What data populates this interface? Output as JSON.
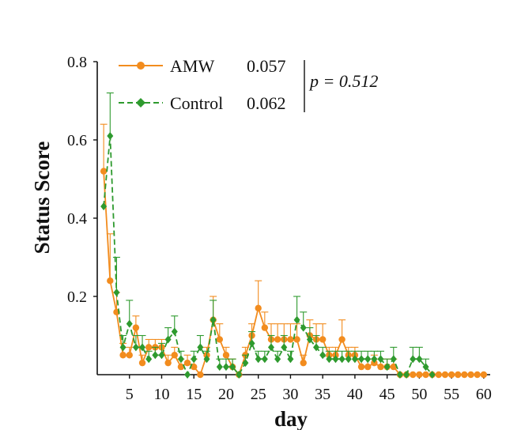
{
  "chart_data": {
    "type": "line",
    "xlabel": "day",
    "ylabel": "Status Score",
    "xlim": [
      0,
      61
    ],
    "ylim": [
      0,
      0.8
    ],
    "x_ticks": [
      5,
      10,
      15,
      20,
      25,
      30,
      35,
      40,
      45,
      50,
      55,
      60
    ],
    "y_ticks": [
      0.2,
      0.4,
      0.6,
      0.8
    ],
    "y_tick_labels": [
      "0.2",
      "0.4",
      "0.6",
      "0.8"
    ],
    "grid": false,
    "legend_position": "top-center",
    "series": [
      {
        "name": "AMW",
        "stat": "0.057",
        "color": "#f28c1e",
        "marker": "circle",
        "line_style": "solid",
        "x": [
          1,
          2,
          3,
          4,
          5,
          6,
          7,
          8,
          9,
          10,
          11,
          12,
          13,
          14,
          15,
          16,
          17,
          18,
          19,
          20,
          21,
          22,
          23,
          24,
          25,
          26,
          27,
          28,
          29,
          30,
          31,
          32,
          33,
          34,
          35,
          36,
          37,
          38,
          39,
          40,
          41,
          42,
          43,
          44,
          45,
          46,
          47,
          48,
          49,
          50,
          51,
          52,
          53,
          54,
          55,
          56,
          57,
          58,
          59,
          60
        ],
        "values": [
          0.52,
          0.24,
          0.16,
          0.05,
          0.05,
          0.12,
          0.03,
          0.07,
          0.07,
          0.07,
          0.03,
          0.05,
          0.02,
          0.03,
          0.02,
          0.0,
          0.05,
          0.14,
          0.09,
          0.05,
          0.02,
          0.0,
          0.05,
          0.1,
          0.17,
          0.12,
          0.09,
          0.09,
          0.09,
          0.09,
          0.09,
          0.03,
          0.1,
          0.09,
          0.09,
          0.05,
          0.05,
          0.09,
          0.05,
          0.05,
          0.02,
          0.02,
          0.03,
          0.02,
          0.02,
          0.02,
          0.0,
          0.0,
          0.0,
          0.0,
          0.0,
          0.0,
          0.0,
          0.0,
          0.0,
          0.0,
          0.0,
          0.0,
          0.0,
          0.0
        ],
        "errors": [
          0.12,
          0.12,
          0.05,
          0.03,
          0.02,
          0.03,
          0.02,
          0.02,
          0.02,
          0.02,
          0.02,
          0.02,
          0.02,
          0.02,
          0.02,
          0.0,
          0.02,
          0.06,
          0.04,
          0.02,
          0.02,
          0.0,
          0.02,
          0.03,
          0.07,
          0.04,
          0.04,
          0.04,
          0.04,
          0.04,
          0.04,
          0.02,
          0.04,
          0.04,
          0.04,
          0.02,
          0.02,
          0.05,
          0.02,
          0.02,
          0.02,
          0.02,
          0.02,
          0.02,
          0.02,
          0.02,
          0.0,
          0.0,
          0.0,
          0.0,
          0.0,
          0.0,
          0.0,
          0.0,
          0.0,
          0.0,
          0.0,
          0.0,
          0.0,
          0.0
        ]
      },
      {
        "name": "Control",
        "stat": "0.062",
        "color": "#2e9a2e",
        "marker": "diamond",
        "line_style": "dashed",
        "x": [
          1,
          2,
          3,
          4,
          5,
          6,
          7,
          8,
          9,
          10,
          11,
          12,
          13,
          14,
          15,
          16,
          17,
          18,
          19,
          20,
          21,
          22,
          23,
          24,
          25,
          26,
          27,
          28,
          29,
          30,
          31,
          32,
          33,
          34,
          35,
          36,
          37,
          38,
          39,
          40,
          41,
          42,
          43,
          44,
          45,
          46,
          47,
          48,
          49,
          50,
          51,
          52
        ],
        "values": [
          0.43,
          0.61,
          0.21,
          0.07,
          0.13,
          0.07,
          0.07,
          0.04,
          0.05,
          0.05,
          0.09,
          0.11,
          0.04,
          0.0,
          0.04,
          0.07,
          0.04,
          0.14,
          0.02,
          0.02,
          0.02,
          0.0,
          0.03,
          0.08,
          0.04,
          0.04,
          0.07,
          0.04,
          0.07,
          0.04,
          0.14,
          0.12,
          0.09,
          0.07,
          0.05,
          0.04,
          0.04,
          0.04,
          0.04,
          0.04,
          0.04,
          0.04,
          0.04,
          0.04,
          0.02,
          0.04,
          0.0,
          0.0,
          0.04,
          0.04,
          0.02,
          0.0
        ],
        "errors": [
          0.0,
          0.11,
          0.09,
          0.03,
          0.06,
          0.03,
          0.03,
          0.02,
          0.02,
          0.03,
          0.03,
          0.04,
          0.02,
          0.0,
          0.02,
          0.03,
          0.02,
          0.05,
          0.02,
          0.02,
          0.02,
          0.0,
          0.02,
          0.03,
          0.02,
          0.02,
          0.03,
          0.02,
          0.03,
          0.02,
          0.06,
          0.04,
          0.03,
          0.03,
          0.02,
          0.02,
          0.02,
          0.02,
          0.02,
          0.02,
          0.02,
          0.02,
          0.02,
          0.02,
          0.02,
          0.03,
          0.0,
          0.0,
          0.03,
          0.03,
          0.02,
          0.0
        ]
      }
    ],
    "annotation": "p = 0.512"
  }
}
